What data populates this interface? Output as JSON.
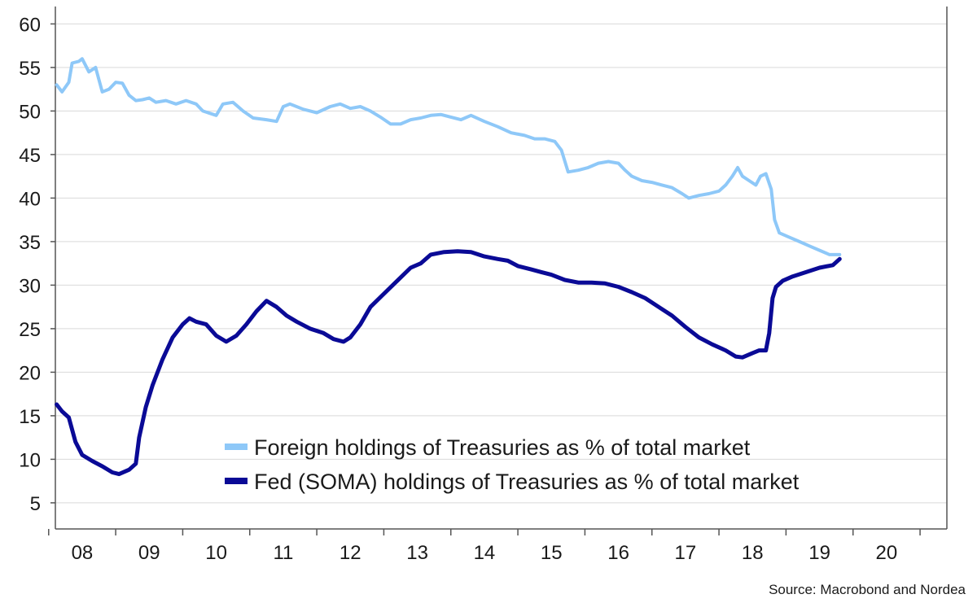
{
  "chart_data": {
    "type": "line",
    "source": "Source: Macrobond and Nordea",
    "ylim": [
      2,
      62
    ],
    "xlim": [
      2007.6,
      2020.9
    ],
    "yticks": [
      5,
      10,
      15,
      20,
      25,
      30,
      35,
      40,
      45,
      50,
      55,
      60
    ],
    "xticks": [
      {
        "label": "08",
        "x": 2008.0
      },
      {
        "label": "09",
        "x": 2009.0
      },
      {
        "label": "10",
        "x": 2010.0
      },
      {
        "label": "11",
        "x": 2011.0
      },
      {
        "label": "12",
        "x": 2012.0
      },
      {
        "label": "13",
        "x": 2013.0
      },
      {
        "label": "14",
        "x": 2014.0
      },
      {
        "label": "15",
        "x": 2015.0
      },
      {
        "label": "16",
        "x": 2016.0
      },
      {
        "label": "17",
        "x": 2017.0
      },
      {
        "label": "18",
        "x": 2018.0
      },
      {
        "label": "19",
        "x": 2019.0
      },
      {
        "label": "20",
        "x": 2020.0
      }
    ],
    "grid": "horizontal",
    "legend_position": "bottom-center",
    "series": [
      {
        "name": "Foreign holdings of Treasuries as % of total market",
        "color": "#8ec8f8",
        "points": [
          [
            2007.62,
            53.0
          ],
          [
            2007.7,
            52.2
          ],
          [
            2007.8,
            53.3
          ],
          [
            2007.85,
            55.5
          ],
          [
            2007.95,
            55.7
          ],
          [
            2008.0,
            56.0
          ],
          [
            2008.1,
            54.5
          ],
          [
            2008.2,
            55.0
          ],
          [
            2008.3,
            52.2
          ],
          [
            2008.4,
            52.5
          ],
          [
            2008.5,
            53.3
          ],
          [
            2008.6,
            53.2
          ],
          [
            2008.7,
            51.8
          ],
          [
            2008.8,
            51.2
          ],
          [
            2008.9,
            51.3
          ],
          [
            2009.0,
            51.5
          ],
          [
            2009.1,
            51.0
          ],
          [
            2009.25,
            51.2
          ],
          [
            2009.4,
            50.8
          ],
          [
            2009.55,
            51.2
          ],
          [
            2009.7,
            50.8
          ],
          [
            2009.8,
            50.0
          ],
          [
            2010.0,
            49.5
          ],
          [
            2010.1,
            50.8
          ],
          [
            2010.25,
            51.0
          ],
          [
            2010.4,
            50.0
          ],
          [
            2010.55,
            49.2
          ],
          [
            2010.75,
            49.0
          ],
          [
            2010.9,
            48.8
          ],
          [
            2011.0,
            50.5
          ],
          [
            2011.1,
            50.8
          ],
          [
            2011.3,
            50.2
          ],
          [
            2011.5,
            49.8
          ],
          [
            2011.7,
            50.5
          ],
          [
            2011.85,
            50.8
          ],
          [
            2012.0,
            50.3
          ],
          [
            2012.15,
            50.5
          ],
          [
            2012.3,
            50.0
          ],
          [
            2012.45,
            49.3
          ],
          [
            2012.6,
            48.5
          ],
          [
            2012.75,
            48.5
          ],
          [
            2012.9,
            49.0
          ],
          [
            2013.05,
            49.2
          ],
          [
            2013.2,
            49.5
          ],
          [
            2013.35,
            49.6
          ],
          [
            2013.5,
            49.3
          ],
          [
            2013.65,
            49.0
          ],
          [
            2013.8,
            49.5
          ],
          [
            2014.0,
            48.8
          ],
          [
            2014.2,
            48.2
          ],
          [
            2014.4,
            47.5
          ],
          [
            2014.6,
            47.2
          ],
          [
            2014.75,
            46.8
          ],
          [
            2014.9,
            46.8
          ],
          [
            2015.05,
            46.5
          ],
          [
            2015.15,
            45.5
          ],
          [
            2015.25,
            43.0
          ],
          [
            2015.4,
            43.2
          ],
          [
            2015.55,
            43.5
          ],
          [
            2015.7,
            44.0
          ],
          [
            2015.85,
            44.2
          ],
          [
            2016.0,
            44.0
          ],
          [
            2016.1,
            43.2
          ],
          [
            2016.2,
            42.5
          ],
          [
            2016.35,
            42.0
          ],
          [
            2016.5,
            41.8
          ],
          [
            2016.65,
            41.5
          ],
          [
            2016.8,
            41.2
          ],
          [
            2016.95,
            40.5
          ],
          [
            2017.05,
            40.0
          ],
          [
            2017.2,
            40.3
          ],
          [
            2017.35,
            40.5
          ],
          [
            2017.5,
            40.8
          ],
          [
            2017.6,
            41.5
          ],
          [
            2017.7,
            42.5
          ],
          [
            2017.78,
            43.5
          ],
          [
            2017.85,
            42.5
          ],
          [
            2017.95,
            42.0
          ],
          [
            2018.05,
            41.5
          ],
          [
            2018.12,
            42.5
          ],
          [
            2018.2,
            42.8
          ],
          [
            2018.28,
            41.0
          ],
          [
            2018.33,
            37.5
          ],
          [
            2018.4,
            36.0
          ],
          [
            2018.55,
            35.5
          ],
          [
            2018.7,
            35.0
          ],
          [
            2018.85,
            34.5
          ],
          [
            2019.0,
            34.0
          ],
          [
            2019.15,
            33.5
          ],
          [
            2019.3,
            33.5
          ]
        ]
      },
      {
        "name": "Fed (SOMA) holdings of Treasuries as % of total market",
        "color": "#0a0a96",
        "points": [
          [
            2007.62,
            16.3
          ],
          [
            2007.7,
            15.5
          ],
          [
            2007.8,
            14.8
          ],
          [
            2007.9,
            12.0
          ],
          [
            2008.0,
            10.5
          ],
          [
            2008.15,
            9.8
          ],
          [
            2008.3,
            9.2
          ],
          [
            2008.45,
            8.5
          ],
          [
            2008.55,
            8.3
          ],
          [
            2008.7,
            8.8
          ],
          [
            2008.8,
            9.5
          ],
          [
            2008.85,
            12.5
          ],
          [
            2008.95,
            16.0
          ],
          [
            2009.05,
            18.5
          ],
          [
            2009.2,
            21.5
          ],
          [
            2009.35,
            24.0
          ],
          [
            2009.5,
            25.5
          ],
          [
            2009.6,
            26.2
          ],
          [
            2009.7,
            25.8
          ],
          [
            2009.85,
            25.5
          ],
          [
            2010.0,
            24.2
          ],
          [
            2010.15,
            23.5
          ],
          [
            2010.3,
            24.2
          ],
          [
            2010.45,
            25.5
          ],
          [
            2010.6,
            27.0
          ],
          [
            2010.75,
            28.2
          ],
          [
            2010.9,
            27.5
          ],
          [
            2011.05,
            26.5
          ],
          [
            2011.2,
            25.8
          ],
          [
            2011.4,
            25.0
          ],
          [
            2011.6,
            24.5
          ],
          [
            2011.75,
            23.8
          ],
          [
            2011.9,
            23.5
          ],
          [
            2012.0,
            24.0
          ],
          [
            2012.15,
            25.5
          ],
          [
            2012.3,
            27.5
          ],
          [
            2012.5,
            29.0
          ],
          [
            2012.7,
            30.5
          ],
          [
            2012.9,
            32.0
          ],
          [
            2013.05,
            32.5
          ],
          [
            2013.2,
            33.5
          ],
          [
            2013.4,
            33.8
          ],
          [
            2013.6,
            33.9
          ],
          [
            2013.8,
            33.8
          ],
          [
            2014.0,
            33.3
          ],
          [
            2014.2,
            33.0
          ],
          [
            2014.35,
            32.8
          ],
          [
            2014.5,
            32.2
          ],
          [
            2014.7,
            31.8
          ],
          [
            2014.85,
            31.5
          ],
          [
            2015.0,
            31.2
          ],
          [
            2015.2,
            30.6
          ],
          [
            2015.4,
            30.3
          ],
          [
            2015.6,
            30.3
          ],
          [
            2015.8,
            30.2
          ],
          [
            2016.0,
            29.8
          ],
          [
            2016.2,
            29.2
          ],
          [
            2016.4,
            28.5
          ],
          [
            2016.6,
            27.5
          ],
          [
            2016.8,
            26.5
          ],
          [
            2017.0,
            25.2
          ],
          [
            2017.2,
            24.0
          ],
          [
            2017.4,
            23.2
          ],
          [
            2017.6,
            22.5
          ],
          [
            2017.75,
            21.8
          ],
          [
            2017.85,
            21.7
          ],
          [
            2018.0,
            22.2
          ],
          [
            2018.1,
            22.5
          ],
          [
            2018.2,
            22.5
          ],
          [
            2018.25,
            24.5
          ],
          [
            2018.3,
            28.5
          ],
          [
            2018.35,
            29.8
          ],
          [
            2018.45,
            30.5
          ],
          [
            2018.6,
            31.0
          ],
          [
            2018.8,
            31.5
          ],
          [
            2019.0,
            32.0
          ],
          [
            2019.2,
            32.3
          ],
          [
            2019.3,
            33.0
          ]
        ]
      }
    ]
  }
}
